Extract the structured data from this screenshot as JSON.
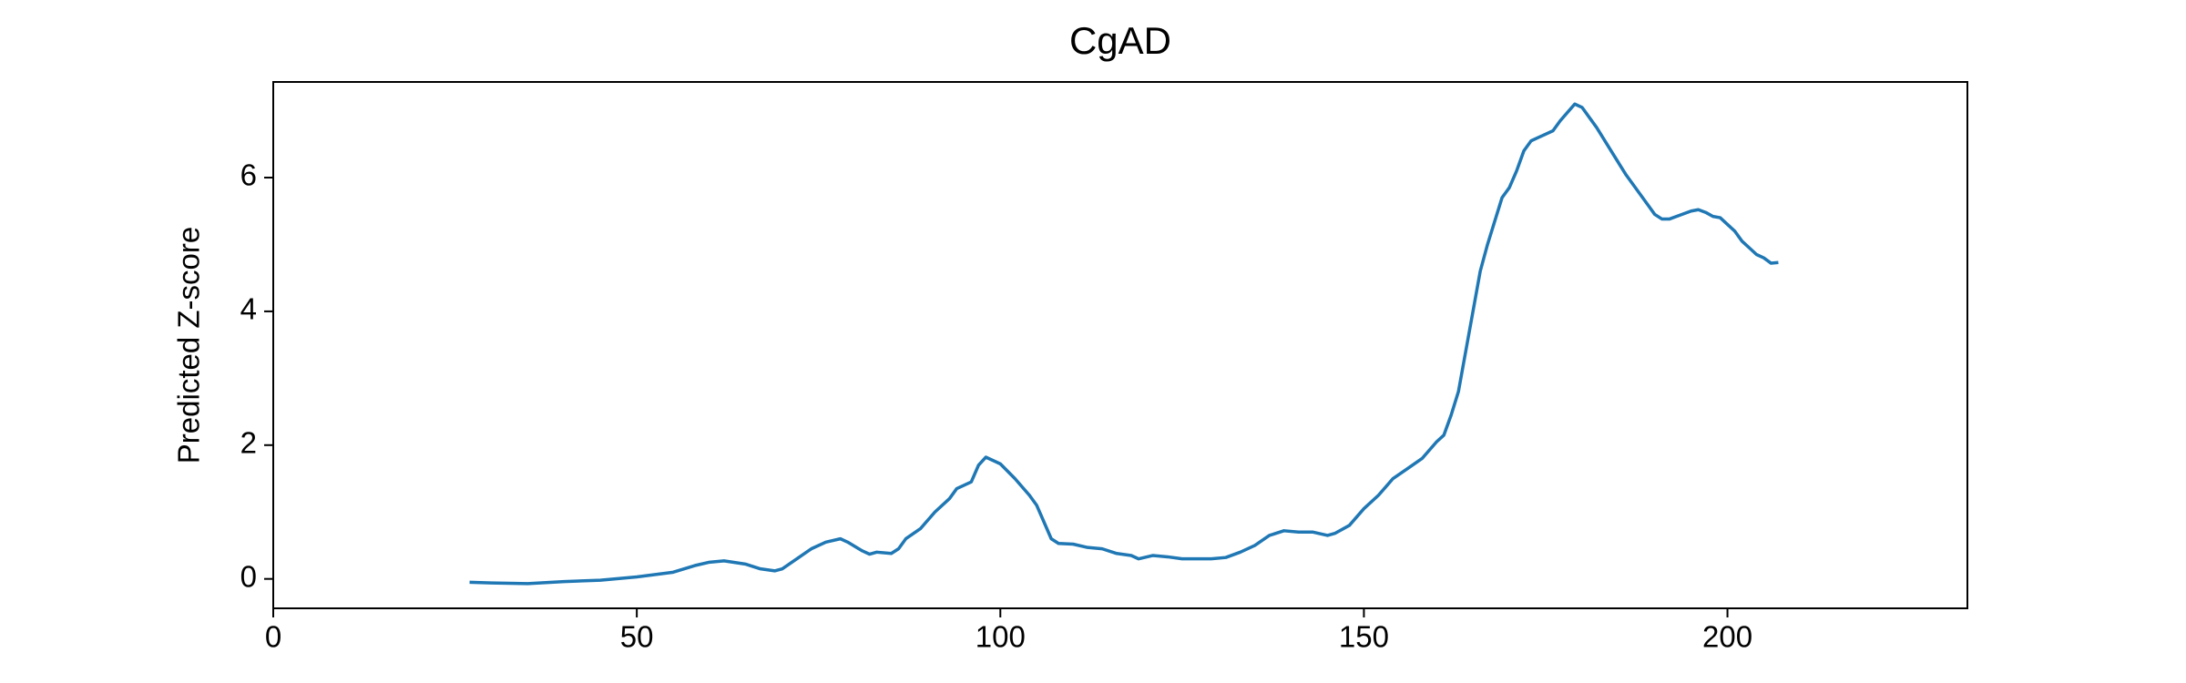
{
  "chart_data": {
    "type": "line",
    "title": "CgAD",
    "ylabel": "Predicted Z-score",
    "x": [
      27,
      30,
      35,
      40,
      45,
      50,
      55,
      58,
      60,
      62,
      65,
      67,
      69,
      70,
      72,
      74,
      76,
      78,
      79,
      81,
      82,
      83,
      85,
      86,
      87,
      89,
      91,
      93,
      94,
      96,
      97,
      98,
      100,
      102,
      104,
      105,
      107,
      108,
      110,
      112,
      114,
      116,
      118,
      119,
      121,
      123,
      125,
      127,
      129,
      131,
      133,
      135,
      137,
      139,
      141,
      143,
      145,
      146,
      148,
      150,
      152,
      154,
      156,
      158,
      160,
      161,
      162,
      163,
      164,
      165,
      166,
      167,
      168,
      169,
      170,
      171,
      172,
      173,
      174,
      175,
      176,
      177,
      179,
      180,
      181,
      182,
      184,
      186,
      188,
      189,
      190,
      191,
      192,
      193,
      195,
      196,
      197,
      198,
      199,
      200,
      201,
      202,
      203,
      204,
      205,
      206,
      207
    ],
    "series": [
      {
        "color": "#1f77b4",
        "values": [
          -0.05,
          -0.06,
          -0.07,
          -0.04,
          -0.02,
          0.03,
          0.1,
          0.2,
          0.25,
          0.27,
          0.22,
          0.15,
          0.12,
          0.15,
          0.3,
          0.45,
          0.55,
          0.6,
          0.55,
          0.42,
          0.37,
          0.4,
          0.38,
          0.45,
          0.6,
          0.75,
          1.0,
          1.2,
          1.35,
          1.45,
          1.7,
          1.82,
          1.72,
          1.5,
          1.25,
          1.1,
          0.6,
          0.53,
          0.52,
          0.47,
          0.45,
          0.38,
          0.35,
          0.3,
          0.35,
          0.33,
          0.3,
          0.3,
          0.3,
          0.32,
          0.4,
          0.5,
          0.65,
          0.72,
          0.7,
          0.7,
          0.65,
          0.68,
          0.8,
          1.05,
          1.25,
          1.5,
          1.65,
          1.8,
          2.05,
          2.15,
          2.45,
          2.8,
          3.4,
          4.0,
          4.6,
          5.0,
          5.35,
          5.7,
          5.85,
          6.1,
          6.4,
          6.55,
          6.6,
          6.65,
          6.7,
          6.85,
          7.1,
          7.05,
          6.9,
          6.75,
          6.4,
          6.05,
          5.75,
          5.6,
          5.45,
          5.38,
          5.38,
          5.42,
          5.5,
          5.52,
          5.48,
          5.42,
          5.4,
          5.3,
          5.2,
          5.05,
          4.95,
          4.85,
          4.8,
          4.72,
          4.73
        ]
      }
    ],
    "xlim": [
      0,
      233
    ],
    "xticks": [
      0,
      50,
      100,
      150,
      200
    ],
    "ylim": [
      -0.44,
      7.43
    ],
    "yticks": [
      0,
      2,
      4,
      6
    ]
  }
}
